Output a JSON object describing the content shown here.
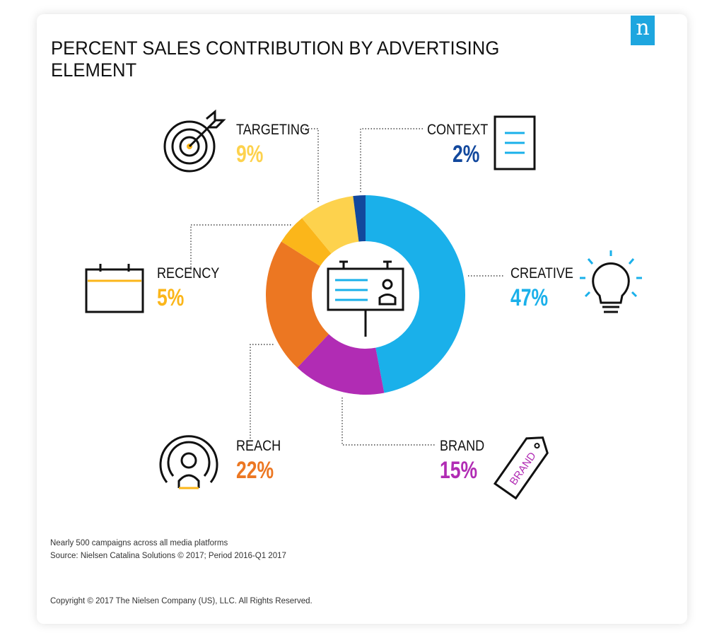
{
  "title": "PERCENT SALES CONTRIBUTION BY ADVERTISING ELEMENT",
  "logo_text": "n",
  "footnote1": "Nearly 500 campaigns across all media platforms",
  "footnote2": "Source: Nielsen Catalina Solutions © 2017; Period 2016-Q1 2017",
  "copyright": "Copyright © 2017 The Nielsen Company (US), LLC. All Rights Reserved.",
  "brand_tag_text": "BRAND",
  "chart_data": {
    "type": "pie",
    "donut": true,
    "title": "PERCENT SALES CONTRIBUTION BY ADVERTISING ELEMENT",
    "slices": [
      {
        "label": "CREATIVE",
        "value": 47,
        "display": "47%",
        "color": "#1ab0ea"
      },
      {
        "label": "BRAND",
        "value": 15,
        "display": "15%",
        "color": "#b12cb4"
      },
      {
        "label": "REACH",
        "value": 22,
        "display": "22%",
        "color": "#ec7722"
      },
      {
        "label": "RECENCY",
        "value": 5,
        "display": "5%",
        "color": "#fbb61a"
      },
      {
        "label": "TARGETING",
        "value": 9,
        "display": "9%",
        "color": "#fdd24d"
      },
      {
        "label": "CONTEXT",
        "value": 2,
        "display": "2%",
        "color": "#12489d"
      }
    ]
  }
}
